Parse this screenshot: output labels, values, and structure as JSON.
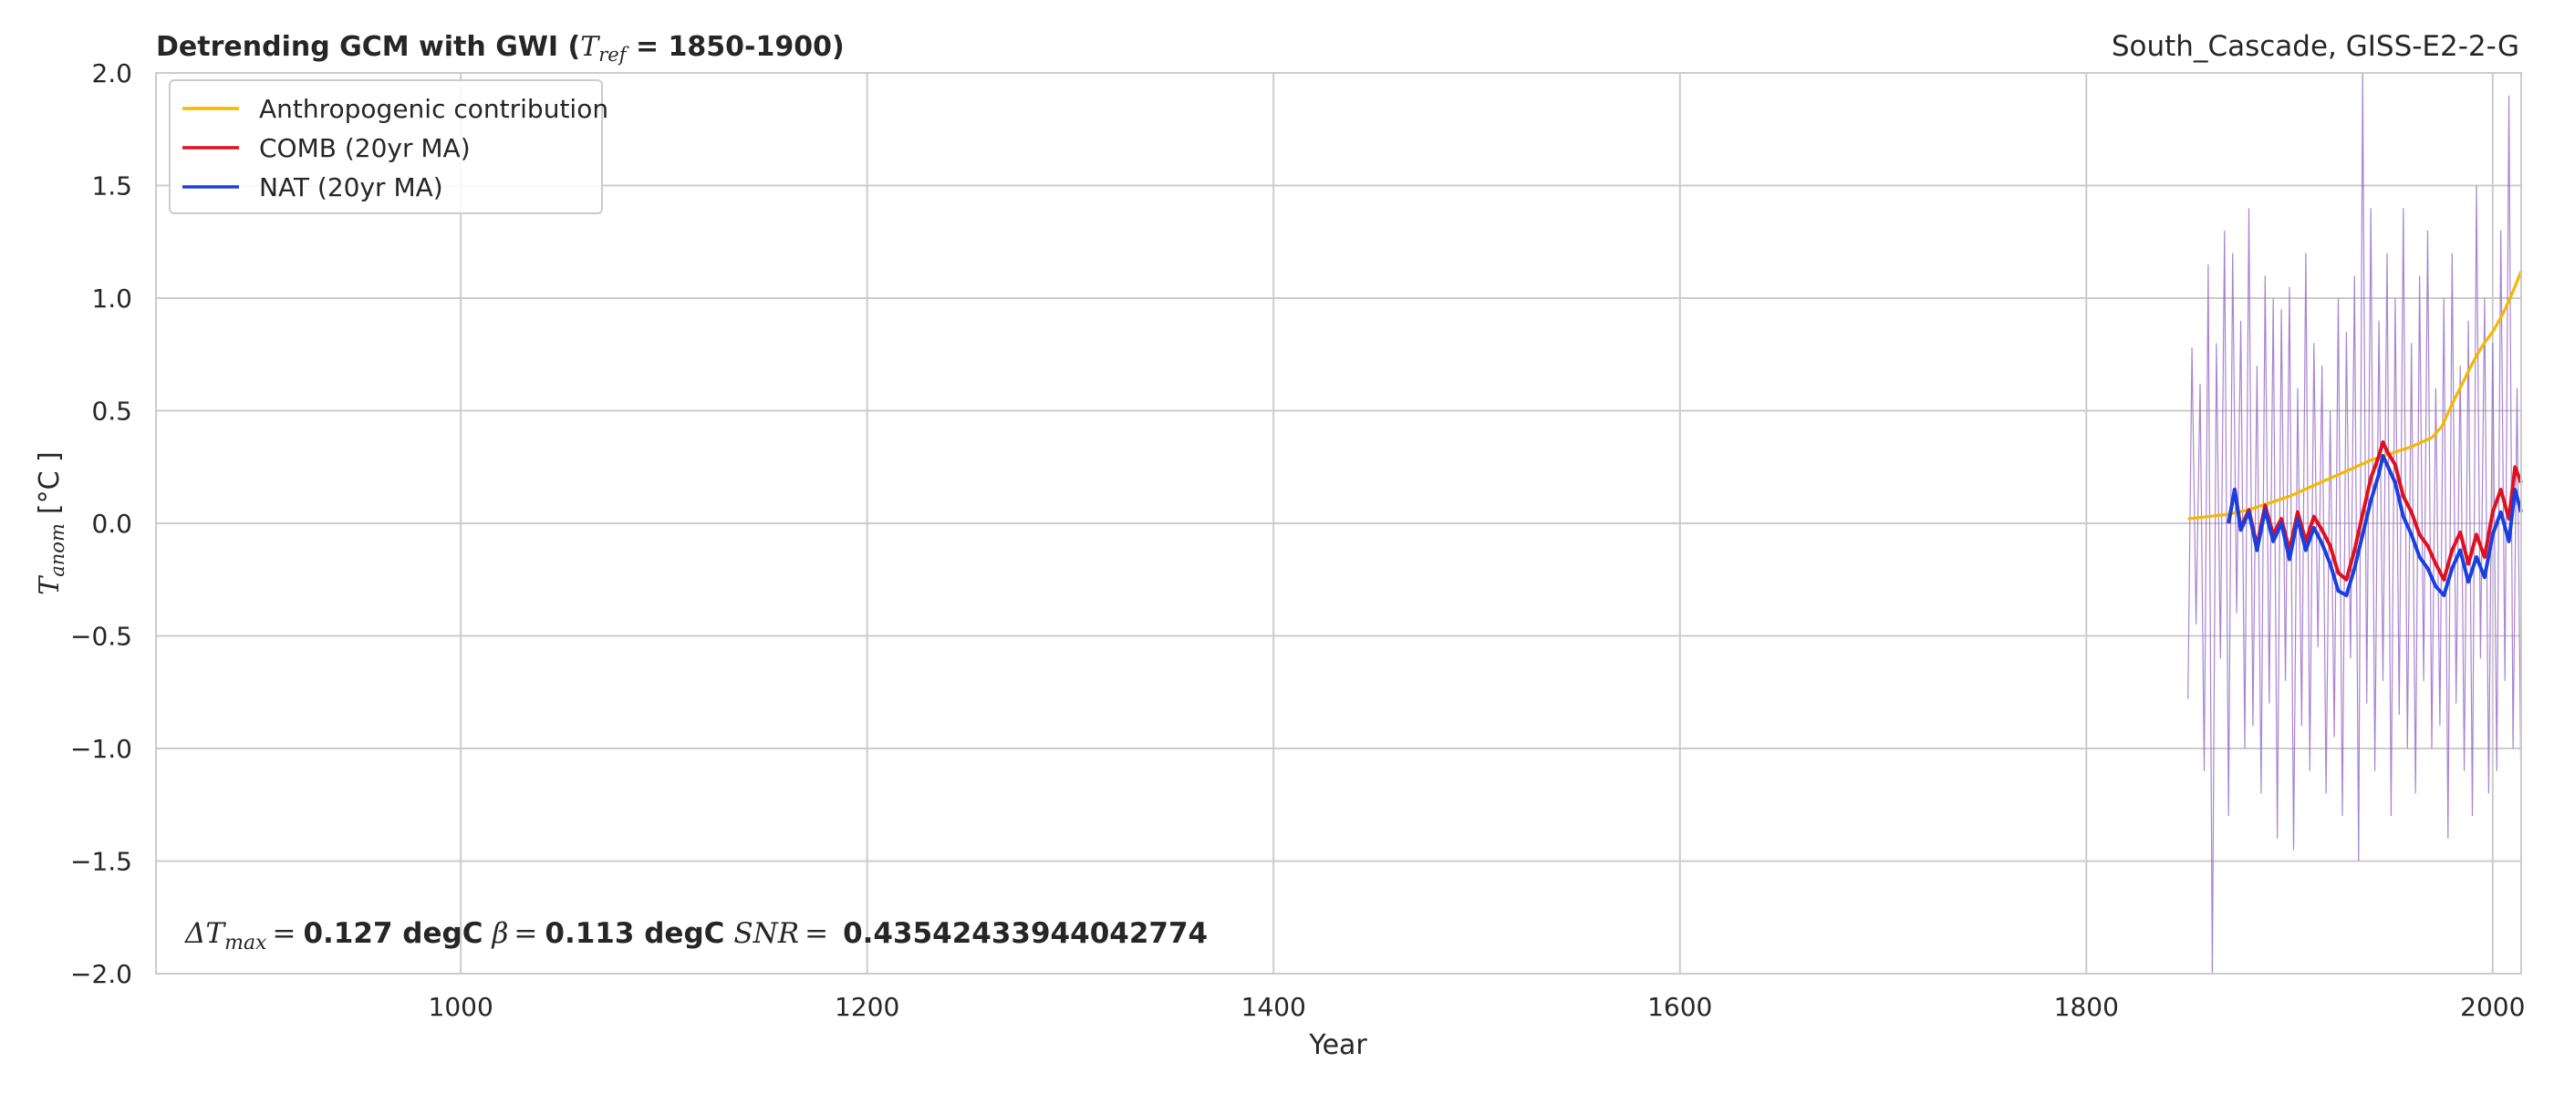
{
  "chart_data": {
    "type": "line",
    "title_left": {
      "prefix": "Detrending GCM with GWI (",
      "symbol": "T",
      "subscript": "ref",
      "suffix": " = 1850-1900)"
    },
    "title_right": "South_Cascade, GISS-E2-2-G",
    "xlabel": "Year",
    "ylabel": {
      "symbol": "T",
      "subscript": "anom",
      "unit": "[°C ]"
    },
    "xlim": [
      850,
      2014
    ],
    "ylim": [
      -2.0,
      2.0
    ],
    "xticks": [
      1000,
      1200,
      1400,
      1600,
      1800,
      2000
    ],
    "xtick_labels": [
      "1000",
      "1200",
      "1400",
      "1600",
      "1800",
      "2000"
    ],
    "yticks": [
      -2.0,
      -1.5,
      -1.0,
      -0.5,
      0.0,
      0.5,
      1.0,
      1.5,
      2.0
    ],
    "ytick_labels": [
      "−2.0",
      "−1.5",
      "−1.0",
      "−0.5",
      "0.0",
      "0.5",
      "1.0",
      "1.5",
      "2.0"
    ],
    "grid": true,
    "legend_position": "top-left",
    "annotation": {
      "dt_symbol": "ΔT",
      "dt_sub": "max",
      "dt_value": "0.127 degC",
      "beta_symbol": "β",
      "beta_value": "0.113 degC",
      "snr_symbol": "SNR",
      "snr_value": "0.43542433944042774"
    },
    "colors": {
      "anthropogenic": "#f5b800",
      "comb": "#e0101e",
      "nat": "#1a3fe0",
      "raw": "#9b6fc8",
      "raw_comb": "#f08080"
    },
    "series": [
      {
        "name": "Anthropogenic contribution",
        "color": "#f5b800",
        "x": [
          1850,
          1860,
          1870,
          1880,
          1890,
          1900,
          1910,
          1920,
          1930,
          1940,
          1950,
          1960,
          1970,
          1975,
          1980,
          1985,
          1990,
          1995,
          2000,
          2005,
          2010,
          2014
        ],
        "y": [
          0.02,
          0.03,
          0.04,
          0.06,
          0.09,
          0.12,
          0.16,
          0.2,
          0.24,
          0.28,
          0.31,
          0.34,
          0.38,
          0.43,
          0.53,
          0.62,
          0.71,
          0.79,
          0.85,
          0.93,
          1.03,
          1.12
        ]
      },
      {
        "name": "COMB (20yr MA)",
        "color": "#e0101e",
        "x": [
          1870,
          1873,
          1876,
          1880,
          1884,
          1888,
          1892,
          1896,
          1900,
          1904,
          1908,
          1912,
          1916,
          1920,
          1924,
          1928,
          1932,
          1936,
          1940,
          1944,
          1946,
          1948,
          1952,
          1956,
          1960,
          1964,
          1968,
          1972,
          1976,
          1980,
          1984,
          1988,
          1992,
          1996,
          2000,
          2004,
          2008,
          2011,
          2014
        ],
        "y": [
          0.0,
          0.15,
          -0.02,
          0.06,
          -0.1,
          0.08,
          -0.05,
          0.02,
          -0.12,
          0.05,
          -0.08,
          0.03,
          -0.03,
          -0.1,
          -0.22,
          -0.25,
          -0.12,
          0.04,
          0.2,
          0.3,
          0.36,
          0.32,
          0.26,
          0.12,
          0.05,
          -0.05,
          -0.1,
          -0.18,
          -0.25,
          -0.12,
          -0.04,
          -0.18,
          -0.05,
          -0.15,
          0.05,
          0.15,
          0.02,
          0.25,
          0.18
        ]
      },
      {
        "name": "NAT (20yr MA)",
        "color": "#1a3fe0",
        "x": [
          1870,
          1873,
          1876,
          1880,
          1884,
          1888,
          1892,
          1896,
          1900,
          1904,
          1908,
          1912,
          1916,
          1920,
          1924,
          1928,
          1932,
          1936,
          1940,
          1944,
          1946,
          1948,
          1952,
          1956,
          1960,
          1964,
          1968,
          1972,
          1976,
          1980,
          1984,
          1988,
          1992,
          1996,
          2000,
          2004,
          2008,
          2011,
          2014
        ],
        "y": [
          0.0,
          0.15,
          -0.03,
          0.05,
          -0.12,
          0.06,
          -0.08,
          0.0,
          -0.16,
          0.02,
          -0.12,
          -0.02,
          -0.09,
          -0.18,
          -0.3,
          -0.32,
          -0.2,
          -0.05,
          0.1,
          0.22,
          0.3,
          0.26,
          0.18,
          0.03,
          -0.05,
          -0.15,
          -0.2,
          -0.28,
          -0.32,
          -0.2,
          -0.12,
          -0.26,
          -0.15,
          -0.24,
          -0.05,
          0.05,
          -0.08,
          0.15,
          0.05
        ]
      }
    ],
    "raw_series": {
      "name": "",
      "color": "#9b6fc8",
      "x": [
        1850,
        1852,
        1854,
        1856,
        1858,
        1860,
        1862,
        1864,
        1866,
        1868,
        1870,
        1872,
        1874,
        1876,
        1878,
        1880,
        1882,
        1884,
        1886,
        1888,
        1890,
        1892,
        1894,
        1896,
        1898,
        1900,
        1902,
        1904,
        1906,
        1908,
        1910,
        1912,
        1914,
        1916,
        1918,
        1920,
        1922,
        1924,
        1926,
        1928,
        1930,
        1932,
        1934,
        1936,
        1938,
        1940,
        1942,
        1944,
        1946,
        1948,
        1950,
        1952,
        1954,
        1956,
        1958,
        1960,
        1962,
        1964,
        1966,
        1968,
        1970,
        1972,
        1974,
        1976,
        1978,
        1980,
        1982,
        1984,
        1986,
        1988,
        1990,
        1992,
        1994,
        1996,
        1998,
        2000,
        2002,
        2004,
        2006,
        2008,
        2010,
        2012,
        2014
      ],
      "y": [
        -0.78,
        0.78,
        -0.45,
        0.62,
        -1.1,
        1.15,
        -2.0,
        0.8,
        -0.6,
        1.3,
        -1.3,
        1.2,
        -0.4,
        0.9,
        -1.0,
        1.4,
        -0.9,
        0.7,
        -1.2,
        1.1,
        -0.8,
        1.0,
        -1.4,
        0.95,
        -0.7,
        1.05,
        -1.45,
        0.6,
        -0.9,
        1.2,
        -1.1,
        0.8,
        -0.55,
        0.7,
        -1.2,
        0.5,
        -0.95,
        1.0,
        -1.3,
        0.85,
        -0.6,
        1.1,
        -1.5,
        2.0,
        -0.8,
        1.4,
        -1.1,
        0.9,
        -0.7,
        1.2,
        -1.3,
        1.0,
        -0.85,
        1.4,
        -1.0,
        0.8,
        -1.2,
        1.1,
        -0.7,
        1.3,
        -1.0,
        0.6,
        -0.9,
        1.0,
        -1.4,
        1.2,
        -0.8,
        0.7,
        -1.1,
        0.9,
        -1.3,
        1.5,
        -0.6,
        1.0,
        -1.2,
        0.8,
        -1.1,
        1.3,
        -0.7,
        1.9,
        -1.0,
        0.6,
        -1.25
      ]
    }
  }
}
